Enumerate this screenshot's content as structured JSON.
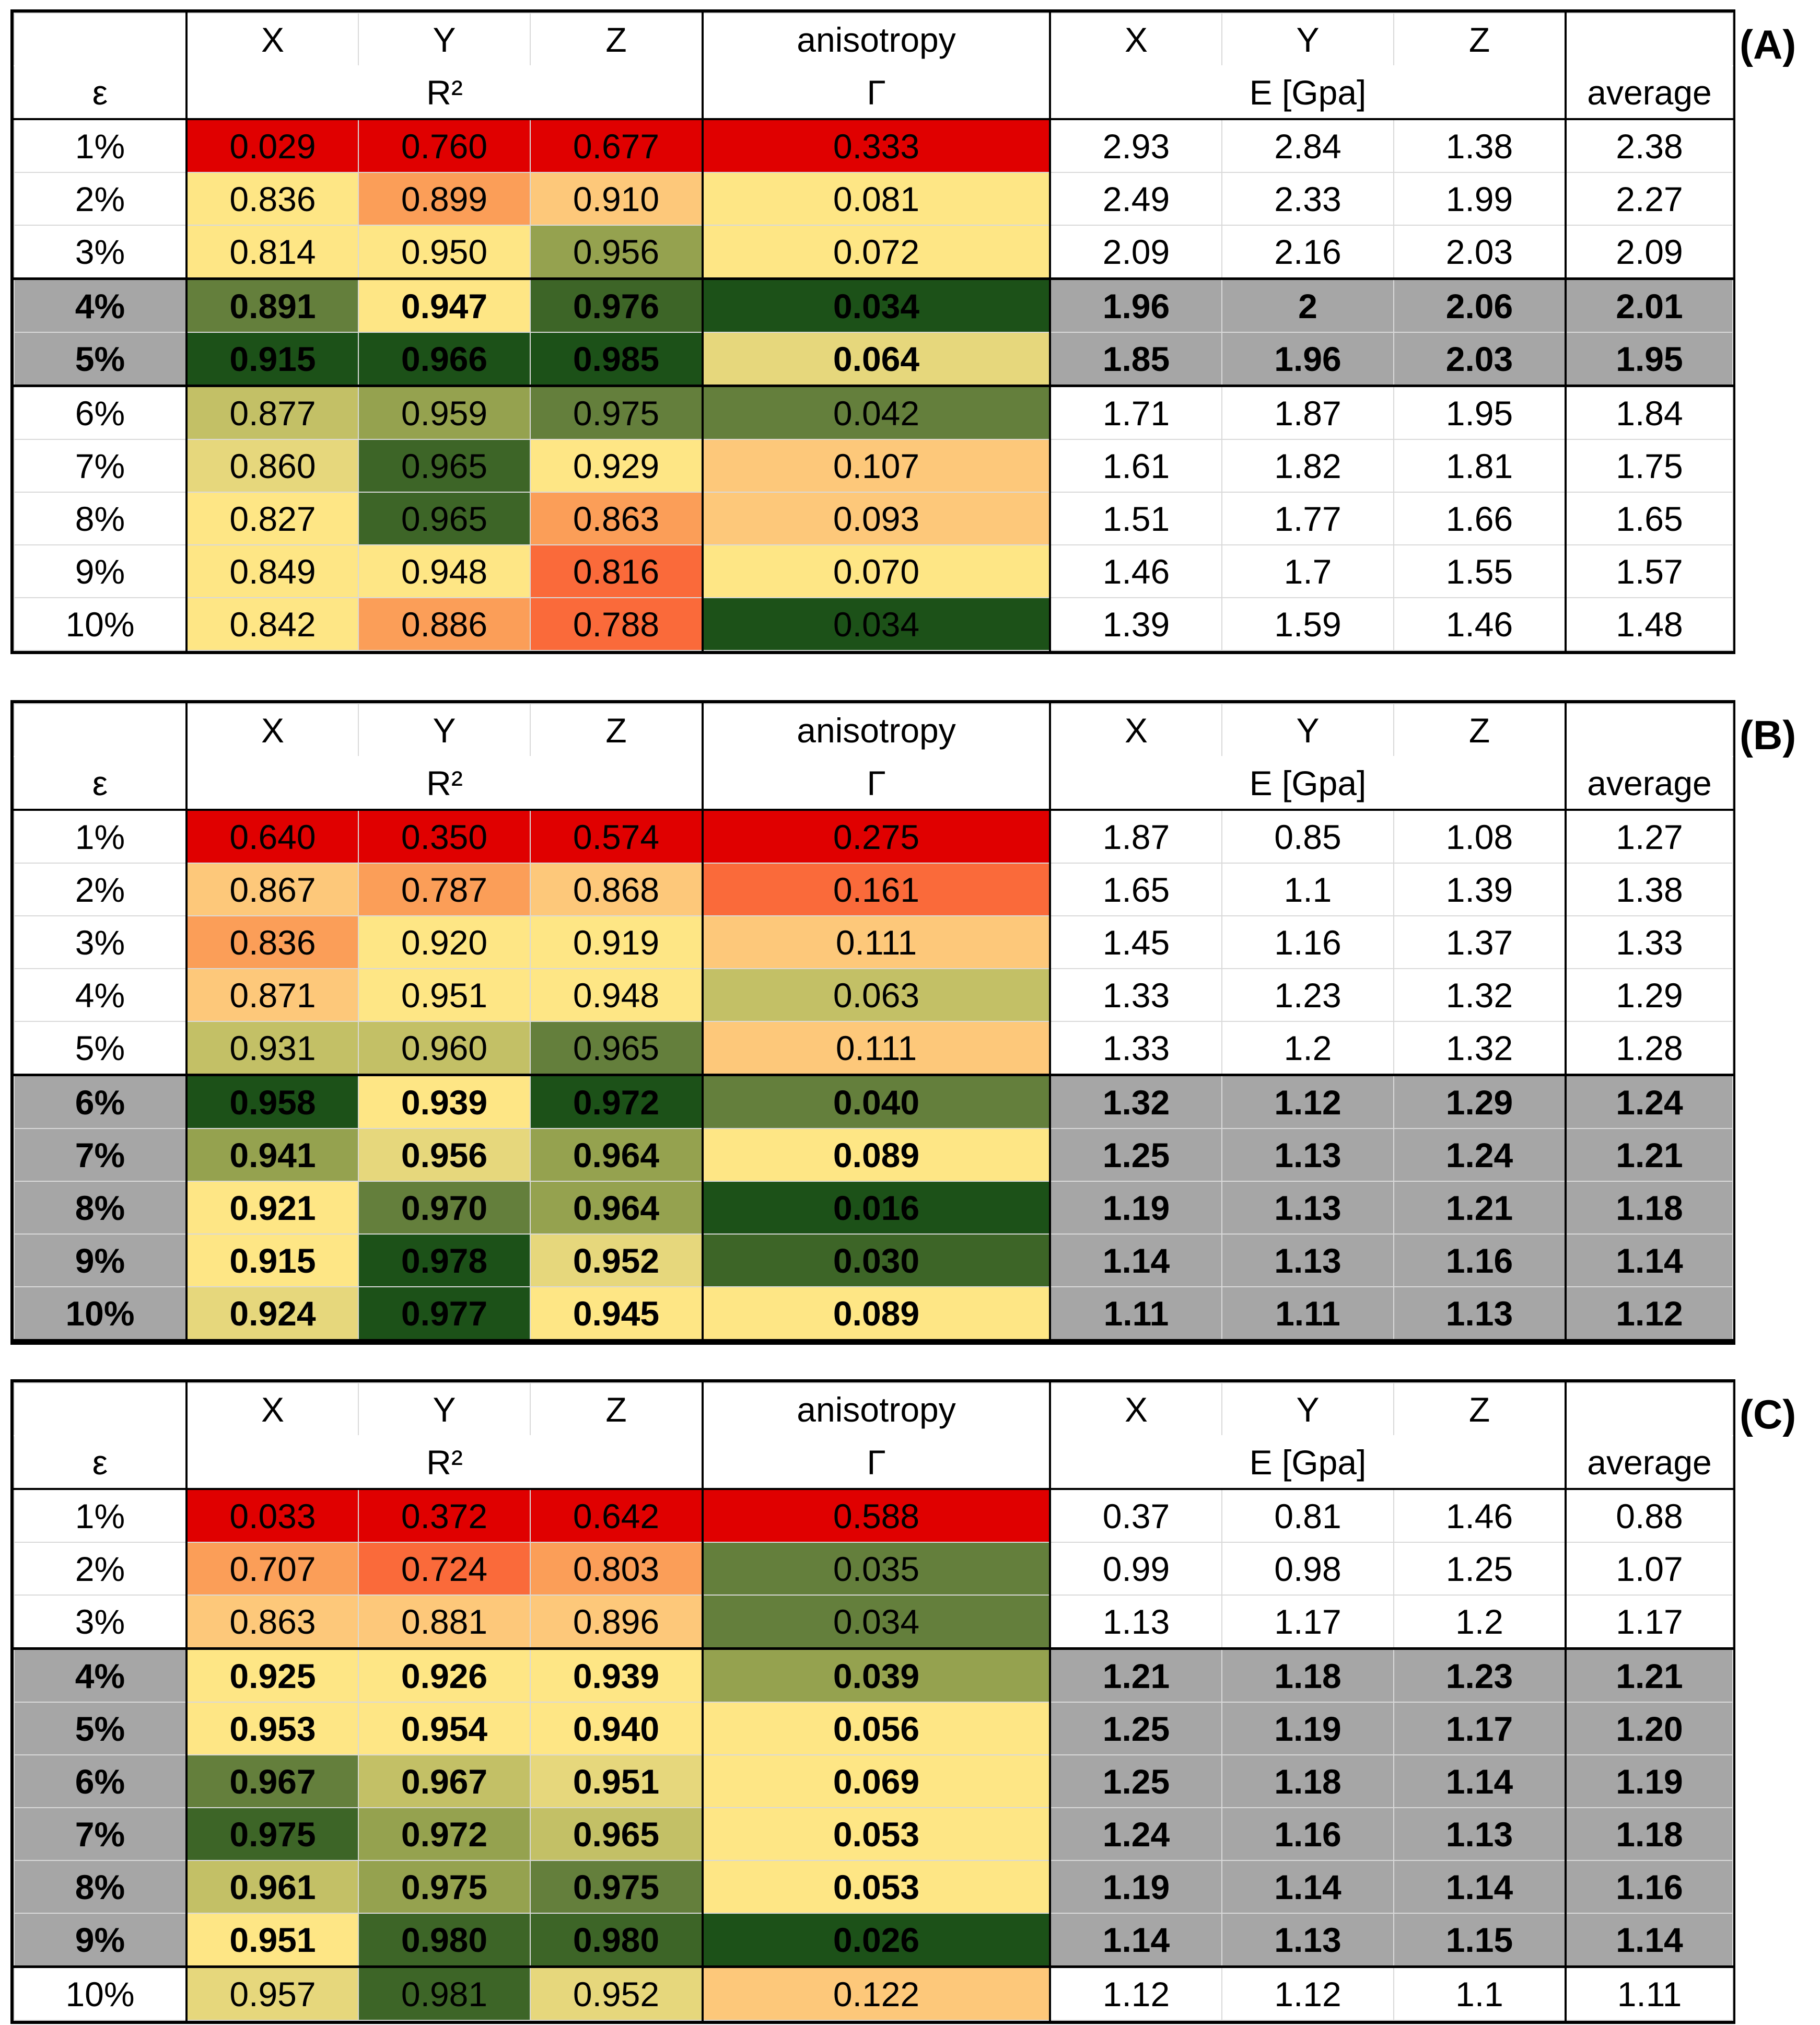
{
  "headers": {
    "x": "X",
    "y": "Y",
    "z": "Z",
    "anisotropy": "anisotropy",
    "epsilon": "ε",
    "r2": "R²",
    "gamma": "Γ",
    "modulus": "E [Gpa]",
    "average": "average"
  },
  "colors": {
    "red": "#e00000",
    "orange_red": "#fa6a3a",
    "orange": "#fb9e58",
    "light_orange": "#fdc87a",
    "yellow": "#fee685",
    "khaki": "#e6d77c",
    "olive_light": "#c3c066",
    "olive": "#95a24f",
    "green_mid": "#647f3c",
    "green": "#3d6527",
    "dark_green": "#1c5118",
    "grey": "#a6a6a6"
  },
  "panels": [
    {
      "label": "(A)",
      "rows": [
        {
          "eps": "1%",
          "r2": [
            "0.029",
            "0.760",
            "0.677"
          ],
          "gamma": "0.333",
          "e": [
            "2.93",
            "2.84",
            "1.38"
          ],
          "avg": "2.38",
          "bold": false,
          "c": [
            "red",
            "red",
            "red",
            "red"
          ]
        },
        {
          "eps": "2%",
          "r2": [
            "0.836",
            "0.899",
            "0.910"
          ],
          "gamma": "0.081",
          "e": [
            "2.49",
            "2.33",
            "1.99"
          ],
          "avg": "2.27",
          "bold": false,
          "c": [
            "yellow",
            "orange",
            "light_orange",
            "yellow"
          ]
        },
        {
          "eps": "3%",
          "r2": [
            "0.814",
            "0.950",
            "0.956"
          ],
          "gamma": "0.072",
          "e": [
            "2.09",
            "2.16",
            "2.03"
          ],
          "avg": "2.09",
          "bold": false,
          "c": [
            "yellow",
            "yellow",
            "olive",
            "yellow"
          ]
        },
        {
          "eps": "4%",
          "r2": [
            "0.891",
            "0.947",
            "0.976"
          ],
          "gamma": "0.034",
          "e": [
            "1.96",
            "2",
            "2.06"
          ],
          "avg": "2.01",
          "bold": true,
          "c": [
            "green_mid",
            "yellow",
            "green",
            "dark_green"
          ]
        },
        {
          "eps": "5%",
          "r2": [
            "0.915",
            "0.966",
            "0.985"
          ],
          "gamma": "0.064",
          "e": [
            "1.85",
            "1.96",
            "2.03"
          ],
          "avg": "1.95",
          "bold": true,
          "c": [
            "dark_green",
            "dark_green",
            "dark_green",
            "khaki"
          ]
        },
        {
          "eps": "6%",
          "r2": [
            "0.877",
            "0.959",
            "0.975"
          ],
          "gamma": "0.042",
          "e": [
            "1.71",
            "1.87",
            "1.95"
          ],
          "avg": "1.84",
          "bold": false,
          "c": [
            "olive_light",
            "olive",
            "green_mid",
            "green_mid"
          ]
        },
        {
          "eps": "7%",
          "r2": [
            "0.860",
            "0.965",
            "0.929"
          ],
          "gamma": "0.107",
          "e": [
            "1.61",
            "1.82",
            "1.81"
          ],
          "avg": "1.75",
          "bold": false,
          "c": [
            "khaki",
            "green",
            "yellow",
            "light_orange"
          ]
        },
        {
          "eps": "8%",
          "r2": [
            "0.827",
            "0.965",
            "0.863"
          ],
          "gamma": "0.093",
          "e": [
            "1.51",
            "1.77",
            "1.66"
          ],
          "avg": "1.65",
          "bold": false,
          "c": [
            "yellow",
            "green",
            "orange",
            "light_orange"
          ]
        },
        {
          "eps": "9%",
          "r2": [
            "0.849",
            "0.948",
            "0.816"
          ],
          "gamma": "0.070",
          "e": [
            "1.46",
            "1.7",
            "1.55"
          ],
          "avg": "1.57",
          "bold": false,
          "c": [
            "yellow",
            "yellow",
            "orange_red",
            "yellow"
          ]
        },
        {
          "eps": "10%",
          "r2": [
            "0.842",
            "0.886",
            "0.788"
          ],
          "gamma": "0.034",
          "e": [
            "1.39",
            "1.59",
            "1.46"
          ],
          "avg": "1.48",
          "bold": false,
          "c": [
            "yellow",
            "orange",
            "orange_red",
            "dark_green"
          ]
        }
      ]
    },
    {
      "label": "(B)",
      "rows": [
        {
          "eps": "1%",
          "r2": [
            "0.640",
            "0.350",
            "0.574"
          ],
          "gamma": "0.275",
          "e": [
            "1.87",
            "0.85",
            "1.08"
          ],
          "avg": "1.27",
          "bold": false,
          "c": [
            "red",
            "red",
            "red",
            "red"
          ]
        },
        {
          "eps": "2%",
          "r2": [
            "0.867",
            "0.787",
            "0.868"
          ],
          "gamma": "0.161",
          "e": [
            "1.65",
            "1.1",
            "1.39"
          ],
          "avg": "1.38",
          "bold": false,
          "c": [
            "light_orange",
            "orange",
            "light_orange",
            "orange_red"
          ]
        },
        {
          "eps": "3%",
          "r2": [
            "0.836",
            "0.920",
            "0.919"
          ],
          "gamma": "0.111",
          "e": [
            "1.45",
            "1.16",
            "1.37"
          ],
          "avg": "1.33",
          "bold": false,
          "c": [
            "orange",
            "yellow",
            "yellow",
            "light_orange"
          ]
        },
        {
          "eps": "4%",
          "r2": [
            "0.871",
            "0.951",
            "0.948"
          ],
          "gamma": "0.063",
          "e": [
            "1.33",
            "1.23",
            "1.32"
          ],
          "avg": "1.29",
          "bold": false,
          "c": [
            "light_orange",
            "yellow",
            "yellow",
            "olive_light"
          ]
        },
        {
          "eps": "5%",
          "r2": [
            "0.931",
            "0.960",
            "0.965"
          ],
          "gamma": "0.111",
          "e": [
            "1.33",
            "1.2",
            "1.32"
          ],
          "avg": "1.28",
          "bold": false,
          "c": [
            "olive_light",
            "olive_light",
            "green_mid",
            "light_orange"
          ]
        },
        {
          "eps": "6%",
          "r2": [
            "0.958",
            "0.939",
            "0.972"
          ],
          "gamma": "0.040",
          "e": [
            "1.32",
            "1.12",
            "1.29"
          ],
          "avg": "1.24",
          "bold": true,
          "c": [
            "dark_green",
            "yellow",
            "dark_green",
            "green_mid"
          ]
        },
        {
          "eps": "7%",
          "r2": [
            "0.941",
            "0.956",
            "0.964"
          ],
          "gamma": "0.089",
          "e": [
            "1.25",
            "1.13",
            "1.24"
          ],
          "avg": "1.21",
          "bold": true,
          "c": [
            "olive",
            "khaki",
            "olive",
            "yellow"
          ]
        },
        {
          "eps": "8%",
          "r2": [
            "0.921",
            "0.970",
            "0.964"
          ],
          "gamma": "0.016",
          "e": [
            "1.19",
            "1.13",
            "1.21"
          ],
          "avg": "1.18",
          "bold": true,
          "c": [
            "yellow",
            "green_mid",
            "olive",
            "dark_green"
          ]
        },
        {
          "eps": "9%",
          "r2": [
            "0.915",
            "0.978",
            "0.952"
          ],
          "gamma": "0.030",
          "e": [
            "1.14",
            "1.13",
            "1.16"
          ],
          "avg": "1.14",
          "bold": true,
          "c": [
            "yellow",
            "dark_green",
            "khaki",
            "green"
          ]
        },
        {
          "eps": "10%",
          "r2": [
            "0.924",
            "0.977",
            "0.945"
          ],
          "gamma": "0.089",
          "e": [
            "1.11",
            "1.11",
            "1.13"
          ],
          "avg": "1.12",
          "bold": true,
          "c": [
            "khaki",
            "dark_green",
            "yellow",
            "yellow"
          ]
        }
      ]
    },
    {
      "label": "(C)",
      "rows": [
        {
          "eps": "1%",
          "r2": [
            "0.033",
            "0.372",
            "0.642"
          ],
          "gamma": "0.588",
          "e": [
            "0.37",
            "0.81",
            "1.46"
          ],
          "avg": "0.88",
          "bold": false,
          "c": [
            "red",
            "red",
            "red",
            "red"
          ]
        },
        {
          "eps": "2%",
          "r2": [
            "0.707",
            "0.724",
            "0.803"
          ],
          "gamma": "0.035",
          "e": [
            "0.99",
            "0.98",
            "1.25"
          ],
          "avg": "1.07",
          "bold": false,
          "c": [
            "orange",
            "orange_red",
            "orange",
            "green_mid"
          ]
        },
        {
          "eps": "3%",
          "r2": [
            "0.863",
            "0.881",
            "0.896"
          ],
          "gamma": "0.034",
          "e": [
            "1.13",
            "1.17",
            "1.2"
          ],
          "avg": "1.17",
          "bold": false,
          "c": [
            "light_orange",
            "light_orange",
            "light_orange",
            "green_mid"
          ]
        },
        {
          "eps": "4%",
          "r2": [
            "0.925",
            "0.926",
            "0.939"
          ],
          "gamma": "0.039",
          "e": [
            "1.21",
            "1.18",
            "1.23"
          ],
          "avg": "1.21",
          "bold": true,
          "c": [
            "yellow",
            "yellow",
            "yellow",
            "olive"
          ]
        },
        {
          "eps": "5%",
          "r2": [
            "0.953",
            "0.954",
            "0.940"
          ],
          "gamma": "0.056",
          "e": [
            "1.25",
            "1.19",
            "1.17"
          ],
          "avg": "1.20",
          "bold": true,
          "c": [
            "yellow",
            "yellow",
            "yellow",
            "yellow"
          ]
        },
        {
          "eps": "6%",
          "r2": [
            "0.967",
            "0.967",
            "0.951"
          ],
          "gamma": "0.069",
          "e": [
            "1.25",
            "1.18",
            "1.14"
          ],
          "avg": "1.19",
          "bold": true,
          "c": [
            "green_mid",
            "olive_light",
            "khaki",
            "yellow"
          ]
        },
        {
          "eps": "7%",
          "r2": [
            "0.975",
            "0.972",
            "0.965"
          ],
          "gamma": "0.053",
          "e": [
            "1.24",
            "1.16",
            "1.13"
          ],
          "avg": "1.18",
          "bold": true,
          "c": [
            "green",
            "olive",
            "olive_light",
            "yellow"
          ]
        },
        {
          "eps": "8%",
          "r2": [
            "0.961",
            "0.975",
            "0.975"
          ],
          "gamma": "0.053",
          "e": [
            "1.19",
            "1.14",
            "1.14"
          ],
          "avg": "1.16",
          "bold": true,
          "c": [
            "olive_light",
            "olive",
            "green_mid",
            "yellow"
          ]
        },
        {
          "eps": "9%",
          "r2": [
            "0.951",
            "0.980",
            "0.980"
          ],
          "gamma": "0.026",
          "e": [
            "1.14",
            "1.13",
            "1.15"
          ],
          "avg": "1.14",
          "bold": true,
          "c": [
            "yellow",
            "green",
            "green",
            "dark_green"
          ]
        },
        {
          "eps": "10%",
          "r2": [
            "0.957",
            "0.981",
            "0.952"
          ],
          "gamma": "0.122",
          "e": [
            "1.12",
            "1.12",
            "1.1"
          ],
          "avg": "1.11",
          "bold": false,
          "c": [
            "khaki",
            "green",
            "khaki",
            "light_orange"
          ]
        }
      ]
    }
  ]
}
